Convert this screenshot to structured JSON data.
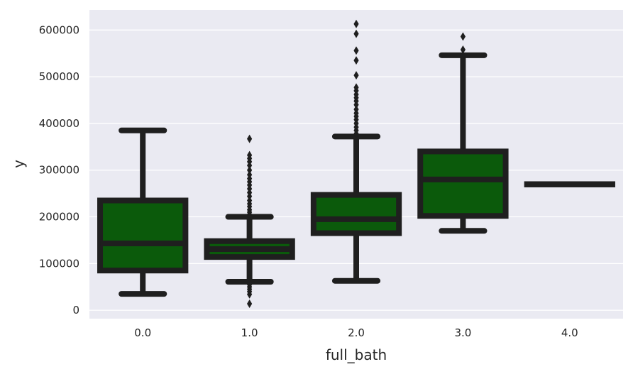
{
  "chart_data": {
    "type": "box",
    "title": "",
    "xlabel": "full_bath",
    "ylabel": "y",
    "ylim": [
      -18000,
      643000
    ],
    "yticks": [
      0,
      100000,
      200000,
      300000,
      400000,
      500000,
      600000
    ],
    "ytick_labels": [
      "0",
      "100000",
      "200000",
      "300000",
      "400000",
      "500000",
      "600000"
    ],
    "categories": [
      "0.0",
      "1.0",
      "2.0",
      "3.0",
      "4.0"
    ],
    "grid": true,
    "box_color": "#0b5a0b",
    "line_color": "#1f1f1f",
    "background_color": "#eaeaf2",
    "grid_color": "#ffffff",
    "boxes": [
      {
        "category": "0.0",
        "whislo": 35000,
        "q1": 85000,
        "med": 143000,
        "q3": 235000,
        "whishi": 385000,
        "fliers": []
      },
      {
        "category": "1.0",
        "whislo": 61000,
        "q1": 114000,
        "med": 131000,
        "q3": 148000,
        "whishi": 200000,
        "fliers": [
          14000,
          34000,
          40000,
          45000,
          50000,
          55000,
          57000,
          205000,
          210000,
          215000,
          222000,
          228000,
          235000,
          244000,
          252000,
          260000,
          268000,
          275000,
          282000,
          290000,
          300000,
          310000,
          318000,
          325000,
          332000,
          367000
        ]
      },
      {
        "category": "2.0",
        "whislo": 63000,
        "q1": 165000,
        "med": 195000,
        "q3": 247000,
        "whishi": 372000,
        "fliers": [
          378000,
          385000,
          392000,
          400000,
          408000,
          415000,
          422000,
          430000,
          440000,
          448000,
          455000,
          462000,
          470000,
          477000,
          503000,
          535000,
          556000,
          592000,
          613000
        ]
      },
      {
        "category": "3.0",
        "whislo": 170000,
        "q1": 202000,
        "med": 280000,
        "q3": 340000,
        "whishi": 546000,
        "fliers": [
          558000,
          586000
        ]
      },
      {
        "category": "4.0",
        "whislo": 270000,
        "q1": 270000,
        "med": 270000,
        "q3": 270000,
        "whishi": 270000,
        "fliers": []
      }
    ]
  }
}
